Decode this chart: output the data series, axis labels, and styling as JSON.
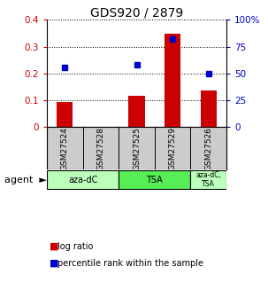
{
  "title": "GDS920 / 2879",
  "samples": [
    "GSM27524",
    "GSM27528",
    "GSM27525",
    "GSM27529",
    "GSM27526"
  ],
  "log_ratio": [
    0.093,
    0.0,
    0.118,
    0.348,
    0.136
  ],
  "percentile_rank": [
    0.222,
    0.0,
    0.232,
    0.328,
    0.198
  ],
  "ylim_left": [
    0,
    0.4
  ],
  "ylim_right": [
    0,
    100
  ],
  "yticks_left": [
    0,
    0.1,
    0.2,
    0.3,
    0.4
  ],
  "yticks_right": [
    0,
    25,
    50,
    75,
    100
  ],
  "ytick_labels_left": [
    "0",
    "0.1",
    "0.2",
    "0.3",
    "0.4"
  ],
  "ytick_labels_right": [
    "0",
    "25",
    "50",
    "75",
    "100%"
  ],
  "bar_color": "#cc0000",
  "dot_color": "#0000cc",
  "agent_groups": [
    {
      "label": "aza-dC",
      "start": 0,
      "end": 2,
      "color": "#bbffbb"
    },
    {
      "label": "TSA",
      "start": 2,
      "end": 4,
      "color": "#55ee55"
    },
    {
      "label": "aza-dC,\nTSA",
      "start": 4,
      "end": 5,
      "color": "#bbffbb"
    }
  ],
  "legend_bar_label": "log ratio",
  "legend_dot_label": "percentile rank within the sample",
  "background_color": "#ffffff",
  "sample_bg_color": "#cccccc"
}
